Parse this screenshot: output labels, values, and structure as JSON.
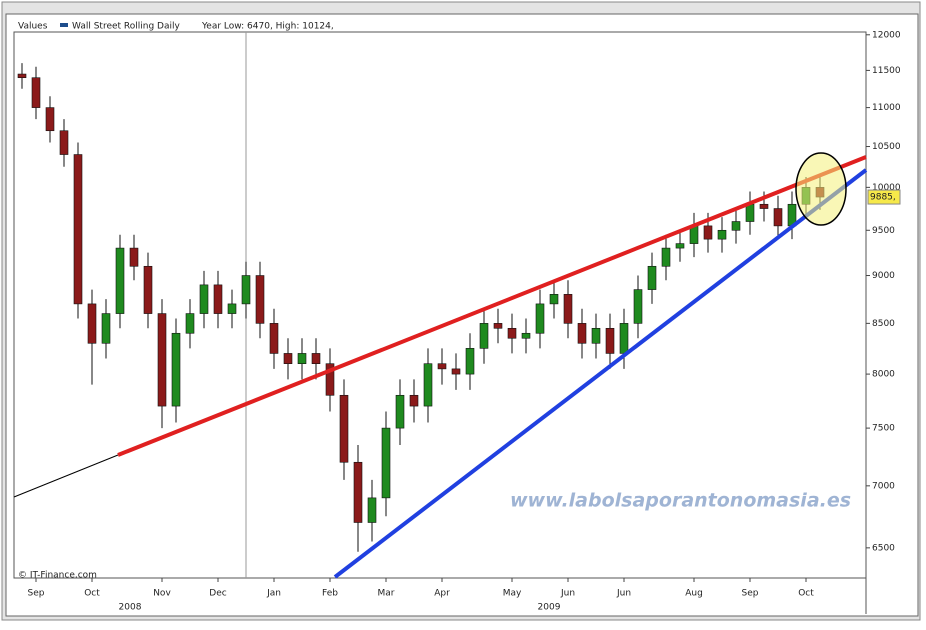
{
  "chart_data": {
    "type": "candlestick",
    "legend_label": "Values",
    "title": "Wall Street Rolling Daily",
    "subtitle": "Year Low: 6470, High: 10124,",
    "categories": [
      null,
      "Sep",
      null,
      null,
      null,
      "Oct",
      null,
      null,
      null,
      null,
      "Nov",
      null,
      null,
      null,
      "Dec",
      null,
      null,
      null,
      "Jan",
      null,
      null,
      null,
      "Feb",
      null,
      null,
      null,
      "Mar",
      null,
      null,
      null,
      "Apr",
      null,
      null,
      null,
      null,
      "May",
      null,
      null,
      null,
      "Jun",
      null,
      null,
      null,
      "Jun",
      null,
      null,
      null,
      null,
      "Aug",
      null,
      null,
      null,
      "Sep",
      null,
      null,
      null,
      "Oct",
      null
    ],
    "open": [
      11450,
      11400,
      11000,
      10700,
      10400,
      8700,
      8300,
      8600,
      9300,
      9100,
      8600,
      7700,
      8400,
      8600,
      8900,
      8600,
      8700,
      9000,
      8500,
      8200,
      8100,
      8200,
      8100,
      7800,
      7200,
      6700,
      6900,
      7500,
      7800,
      7700,
      8100,
      8050,
      8000,
      8250,
      8500,
      8450,
      8350,
      8400,
      8700,
      8800,
      8500,
      8300,
      8450,
      8200,
      8500,
      8850,
      9100,
      9300,
      9350,
      9550,
      9400,
      9500,
      9600,
      9800,
      9750,
      9550,
      9800,
      10000
    ],
    "high": [
      11600,
      11550,
      11150,
      10850,
      10550,
      8850,
      8750,
      9450,
      9450,
      9250,
      8750,
      8550,
      8750,
      9050,
      9050,
      8850,
      9150,
      9150,
      8650,
      8350,
      8350,
      8350,
      8250,
      7950,
      7350,
      7050,
      7650,
      7950,
      7950,
      8250,
      8250,
      8200,
      8400,
      8650,
      8650,
      8600,
      8550,
      8850,
      8950,
      8950,
      8650,
      8600,
      8600,
      8650,
      9000,
      9250,
      9450,
      9500,
      9700,
      9700,
      9650,
      9750,
      9950,
      9950,
      9900,
      9950,
      10124,
      10124
    ],
    "low": [
      11250,
      10850,
      10550,
      10250,
      8550,
      7900,
      8150,
      8450,
      8950,
      8450,
      7500,
      7550,
      8250,
      8450,
      8450,
      8450,
      8550,
      8350,
      8050,
      7950,
      7950,
      7950,
      7650,
      7050,
      6470,
      6550,
      6750,
      7350,
      7550,
      7550,
      7900,
      7850,
      7850,
      8100,
      8300,
      8200,
      8200,
      8250,
      8550,
      8350,
      8150,
      8150,
      8050,
      8050,
      8350,
      8700,
      8950,
      9150,
      9200,
      9250,
      9250,
      9350,
      9450,
      9600,
      9400,
      9400,
      9650,
      9735
    ],
    "close": [
      11400,
      11000,
      10700,
      10400,
      8700,
      8300,
      8600,
      9300,
      9100,
      8600,
      7700,
      8400,
      8600,
      8900,
      8600,
      8700,
      9000,
      8500,
      8200,
      8100,
      8200,
      8100,
      7800,
      7200,
      6700,
      6900,
      7500,
      7800,
      7700,
      8100,
      8050,
      8000,
      8250,
      8500,
      8450,
      8350,
      8400,
      8700,
      8800,
      8500,
      8300,
      8450,
      8200,
      8500,
      8850,
      9100,
      9300,
      9350,
      9550,
      9400,
      9500,
      9600,
      9800,
      9750,
      9550,
      9800,
      10000,
      9885
    ],
    "up_color": "#1f8a1f",
    "down_color": "#8b1a1a",
    "log_scale": true,
    "ylim": [
      6270,
      12040
    ],
    "yticks": [
      6500,
      7000,
      7500,
      8000,
      8500,
      9000,
      9500,
      10000,
      10500,
      11000,
      11500,
      12000
    ],
    "year_labels": [
      "2008",
      "2009"
    ],
    "last_price": {
      "value": 9885,
      "label": "9885,"
    },
    "watermark": "www.labolsaporantonomasia.es",
    "credit": "© IT-Finance.com"
  }
}
